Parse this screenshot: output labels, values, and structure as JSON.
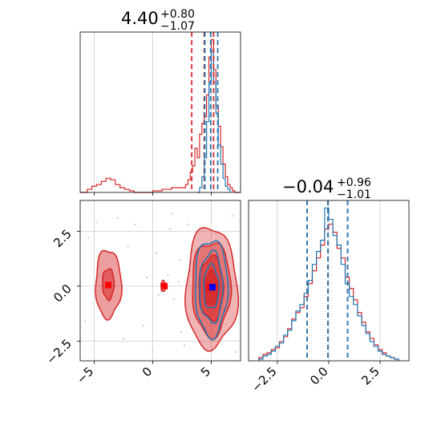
{
  "colors": {
    "red": "#d62728",
    "blue": "#1f77b4",
    "marker_red": "#ff0000",
    "marker_blue": "#0000ff",
    "grid": "#cccccc"
  },
  "chart_data": [
    {
      "type": "histogram",
      "panel": "top-left",
      "title": {
        "value": "4.40",
        "upper": "+0.80",
        "lower": "−1.07"
      },
      "x": {
        "lim": [
          -6.2,
          7.5
        ],
        "grid": [
          -5,
          0,
          5
        ]
      },
      "grid": true,
      "series": [
        {
          "color": "#d62728",
          "style": "step",
          "bins": [
            [
              -6.2,
              0.0
            ],
            [
              -5.6,
              0.02
            ],
            [
              -5.2,
              0.04
            ],
            [
              -4.8,
              0.05
            ],
            [
              -4.4,
              0.07
            ],
            [
              -4.0,
              0.09
            ],
            [
              -3.6,
              0.08
            ],
            [
              -3.2,
              0.05
            ],
            [
              -2.8,
              0.03
            ],
            [
              -2.4,
              0.02
            ],
            [
              -2.0,
              0.01
            ],
            [
              -1.6,
              0.0
            ],
            [
              -1.2,
              0.0
            ],
            [
              -0.8,
              0.0
            ],
            [
              -0.4,
              0.0
            ],
            [
              0.0,
              0.01
            ],
            [
              0.4,
              0.01
            ],
            [
              0.8,
              0.02
            ],
            [
              1.2,
              0.02
            ],
            [
              1.6,
              0.03
            ],
            [
              2.0,
              0.03
            ],
            [
              2.4,
              0.03
            ],
            [
              2.8,
              0.05
            ],
            [
              3.0,
              0.08
            ],
            [
              3.2,
              0.13
            ],
            [
              3.4,
              0.17
            ],
            [
              3.6,
              0.28
            ],
            [
              3.8,
              0.22
            ],
            [
              4.0,
              0.37
            ],
            [
              4.2,
              0.44
            ],
            [
              4.4,
              0.48
            ],
            [
              4.6,
              0.62
            ],
            [
              4.8,
              0.86
            ],
            [
              5.0,
              0.97
            ],
            [
              5.2,
              0.78
            ],
            [
              5.4,
              0.55
            ],
            [
              5.6,
              0.42
            ],
            [
              5.8,
              0.29
            ],
            [
              6.0,
              0.18
            ],
            [
              6.2,
              0.1
            ],
            [
              6.4,
              0.05
            ],
            [
              6.6,
              0.03
            ],
            [
              6.8,
              0.01
            ],
            [
              7.0,
              0.0
            ],
            [
              7.5,
              0.0
            ]
          ],
          "quantiles": [
            3.33,
            4.4,
            5.2
          ]
        },
        {
          "color": "#1f77b4",
          "style": "step",
          "bins": [
            [
              3.8,
              0.0
            ],
            [
              4.0,
              0.03
            ],
            [
              4.2,
              0.1
            ],
            [
              4.4,
              0.22
            ],
            [
              4.6,
              0.45
            ],
            [
              4.8,
              0.7
            ],
            [
              5.0,
              0.9
            ],
            [
              5.2,
              0.7
            ],
            [
              5.4,
              0.5
            ],
            [
              5.6,
              0.3
            ],
            [
              5.8,
              0.18
            ],
            [
              6.0,
              0.09
            ],
            [
              6.2,
              0.04
            ],
            [
              6.4,
              0.02
            ],
            [
              6.6,
              0.0
            ]
          ],
          "quantiles": [
            4.45,
            4.95,
            5.55
          ]
        }
      ]
    },
    {
      "type": "histogram",
      "panel": "bottom-right",
      "title": {
        "value": "−0.04",
        "upper": "+0.96",
        "lower": "−1.01"
      },
      "x": {
        "lim": [
          -3.9,
          3.9
        ],
        "ticks": [
          -2.5,
          0.0,
          2.5
        ],
        "tick_labels": [
          "−2.5",
          "0.0",
          "2.5"
        ],
        "grid": [
          -2.5,
          0.0,
          2.5
        ]
      },
      "grid": true,
      "series": [
        {
          "color": "#d62728",
          "style": "step",
          "bins": [
            [
              -3.4,
              0.02
            ],
            [
              -3.2,
              0.04
            ],
            [
              -3.0,
              0.05
            ],
            [
              -2.8,
              0.07
            ],
            [
              -2.6,
              0.08
            ],
            [
              -2.4,
              0.12
            ],
            [
              -2.2,
              0.15
            ],
            [
              -2.0,
              0.2
            ],
            [
              -1.8,
              0.26
            ],
            [
              -1.6,
              0.3
            ],
            [
              -1.4,
              0.33
            ],
            [
              -1.2,
              0.4
            ],
            [
              -1.0,
              0.48
            ],
            [
              -0.8,
              0.56
            ],
            [
              -0.6,
              0.64
            ],
            [
              -0.4,
              0.72
            ],
            [
              -0.2,
              0.82
            ],
            [
              0.0,
              0.85
            ],
            [
              0.2,
              0.8
            ],
            [
              0.4,
              0.7
            ],
            [
              0.6,
              0.64
            ],
            [
              0.8,
              0.52
            ],
            [
              1.0,
              0.45
            ],
            [
              1.2,
              0.38
            ],
            [
              1.4,
              0.3
            ],
            [
              1.6,
              0.24
            ],
            [
              1.8,
              0.18
            ],
            [
              2.0,
              0.14
            ],
            [
              2.2,
              0.1
            ],
            [
              2.4,
              0.07
            ],
            [
              2.6,
              0.05
            ],
            [
              2.8,
              0.03
            ],
            [
              3.0,
              0.02
            ],
            [
              3.2,
              0.01
            ],
            [
              3.4,
              0.0
            ]
          ],
          "quantiles": [
            -1.05,
            -0.04,
            0.92
          ]
        },
        {
          "color": "#1f77b4",
          "style": "step",
          "bins": [
            [
              -3.4,
              0.01
            ],
            [
              -3.2,
              0.03
            ],
            [
              -3.0,
              0.04
            ],
            [
              -2.8,
              0.06
            ],
            [
              -2.6,
              0.09
            ],
            [
              -2.4,
              0.11
            ],
            [
              -2.2,
              0.16
            ],
            [
              -2.0,
              0.19
            ],
            [
              -1.8,
              0.25
            ],
            [
              -1.6,
              0.31
            ],
            [
              -1.4,
              0.35
            ],
            [
              -1.2,
              0.42
            ],
            [
              -1.0,
              0.5
            ],
            [
              -0.8,
              0.6
            ],
            [
              -0.6,
              0.68
            ],
            [
              -0.4,
              0.75
            ],
            [
              -0.2,
              0.95
            ],
            [
              0.0,
              0.88
            ],
            [
              0.2,
              0.78
            ],
            [
              0.4,
              0.72
            ],
            [
              0.6,
              0.6
            ],
            [
              0.8,
              0.48
            ],
            [
              1.0,
              0.4
            ],
            [
              1.2,
              0.35
            ],
            [
              1.4,
              0.28
            ],
            [
              1.6,
              0.22
            ],
            [
              1.8,
              0.17
            ],
            [
              2.0,
              0.12
            ],
            [
              2.2,
              0.09
            ],
            [
              2.4,
              0.06
            ],
            [
              2.6,
              0.04
            ],
            [
              2.8,
              0.03
            ],
            [
              3.0,
              0.02
            ],
            [
              3.2,
              0.01
            ],
            [
              3.4,
              0.0
            ]
          ],
          "quantiles": [
            -1.05,
            -0.04,
            0.92
          ]
        }
      ]
    },
    {
      "type": "contour",
      "panel": "bottom-left",
      "x": {
        "lim": [
          -6.2,
          7.5
        ],
        "ticks": [
          -5,
          0,
          5
        ],
        "tick_labels": [
          "−5",
          "0",
          "5"
        ]
      },
      "y": {
        "lim": [
          -3.4,
          3.9
        ],
        "ticks": [
          -2.5,
          0.0,
          2.5
        ],
        "tick_labels": [
          "−2.5",
          "0.0",
          "2.5"
        ]
      },
      "grid": true,
      "red_modes": [
        {
          "center": [
            -3.8,
            0.1
          ],
          "contours": [
            {
              "rx": 1.1,
              "ry": 1.55,
              "filled": true,
              "alpha": 0.45
            },
            {
              "rx": 0.5,
              "ry": 0.7,
              "filled": true,
              "alpha": 0.55
            }
          ]
        },
        {
          "center": [
            0.9,
            0.0
          ],
          "contours": [
            {
              "rx": 0.2,
              "ry": 0.25,
              "filled": true,
              "alpha": 0.5
            }
          ]
        },
        {
          "center": [
            5.0,
            -0.1
          ],
          "contours": [
            {
              "rx": 2.2,
              "ry": 2.75,
              "filled": true,
              "alpha": 0.35
            },
            {
              "rx": 1.65,
              "ry": 2.15,
              "filled": true,
              "alpha": 0.45
            },
            {
              "rx": 1.05,
              "ry": 1.45,
              "filled": true,
              "alpha": 0.6
            },
            {
              "rx": 0.55,
              "ry": 0.8,
              "filled": true,
              "alpha": 0.75
            }
          ]
        }
      ],
      "blue_mode": {
        "center": [
          5.0,
          -0.05
        ],
        "contours": [
          {
            "rx": 1.4,
            "ry": 2.2
          },
          {
            "rx": 1.0,
            "ry": 1.6
          },
          {
            "rx": 0.65,
            "ry": 1.0
          }
        ]
      },
      "markers": [
        {
          "x": -3.8,
          "y": 0.05,
          "color": "#ff0000"
        },
        {
          "x": 1.0,
          "y": 0.0,
          "color": "#ff0000"
        },
        {
          "x": 4.9,
          "y": -0.05,
          "color": "#ff0000"
        },
        {
          "x": 5.1,
          "y": -0.05,
          "color": "#0000ff"
        }
      ],
      "scatter_noise": [
        [
          -5.5,
          2.2
        ],
        [
          -4.8,
          2.9
        ],
        [
          -2.1,
          1.8
        ],
        [
          -1.5,
          2.8
        ],
        [
          -0.8,
          -1.8
        ],
        [
          0.3,
          1.5
        ],
        [
          1.5,
          2.6
        ],
        [
          2.3,
          1.2
        ],
        [
          1.8,
          -0.6
        ],
        [
          2.4,
          -2.1
        ],
        [
          -2.5,
          -2.4
        ],
        [
          -5.8,
          -1.6
        ],
        [
          3.0,
          2.8
        ],
        [
          2.7,
          -2.7
        ],
        [
          0.5,
          -0.4
        ],
        [
          1.3,
          0.5
        ],
        [
          -0.5,
          0.4
        ],
        [
          6.8,
          3.2
        ],
        [
          7.1,
          -3.0
        ],
        [
          2.2,
          0.2
        ],
        [
          3.2,
          0.7
        ],
        [
          1.6,
          3.3
        ],
        [
          -3.0,
          3.1
        ],
        [
          0.0,
          -2.9
        ]
      ]
    }
  ]
}
